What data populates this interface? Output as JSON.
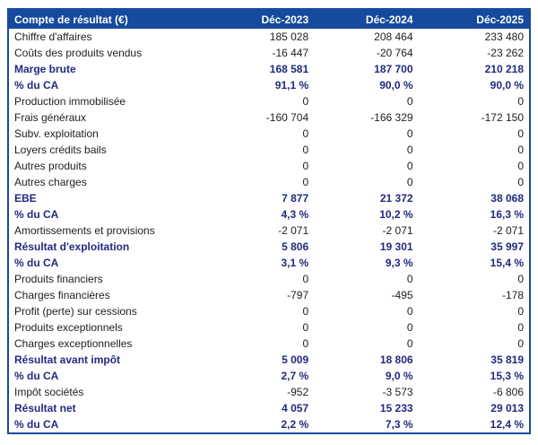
{
  "page": {
    "background_color": "#ffffff"
  },
  "table": {
    "title": "Compte de résultat (€)",
    "columns": [
      "Déc-2023",
      "Déc-2024",
      "Déc-2025"
    ],
    "colors": {
      "header_background": "#164a9c",
      "header_text": "#ffffff",
      "outer_border": "#1b4a9e",
      "bold_row_text": "#1f2b7e",
      "regular_row_text": "#1d1d1d"
    },
    "rows": [
      {
        "label": "Chiffre d'affaires",
        "bold": false,
        "values": [
          "185 028",
          "208 464",
          "233 480"
        ]
      },
      {
        "label": "Coûts des produits vendus",
        "bold": false,
        "values": [
          "-16 447",
          "-20 764",
          "-23 262"
        ]
      },
      {
        "label": "Marge brute",
        "bold": true,
        "values": [
          "168 581",
          "187 700",
          "210 218"
        ]
      },
      {
        "label": "% du CA",
        "bold": true,
        "values": [
          "91,1 %",
          "90,0 %",
          "90,0 %"
        ]
      },
      {
        "label": "Production immobilisée",
        "bold": false,
        "values": [
          "0",
          "0",
          "0"
        ]
      },
      {
        "label": "Frais généraux",
        "bold": false,
        "values": [
          "-160 704",
          "-166 329",
          "-172 150"
        ]
      },
      {
        "label": "Subv. exploitation",
        "bold": false,
        "values": [
          "0",
          "0",
          "0"
        ]
      },
      {
        "label": "Loyers crédits bails",
        "bold": false,
        "values": [
          "0",
          "0",
          "0"
        ]
      },
      {
        "label": "Autres produits",
        "bold": false,
        "values": [
          "0",
          "0",
          "0"
        ]
      },
      {
        "label": "Autres charges",
        "bold": false,
        "values": [
          "0",
          "0",
          "0"
        ]
      },
      {
        "label": "EBE",
        "bold": true,
        "values": [
          "7 877",
          "21 372",
          "38 068"
        ]
      },
      {
        "label": "% du CA",
        "bold": true,
        "values": [
          "4,3 %",
          "10,2 %",
          "16,3 %"
        ]
      },
      {
        "label": "Amortissements et provisions",
        "bold": false,
        "values": [
          "-2 071",
          "-2 071",
          "-2 071"
        ]
      },
      {
        "label": "Résultat d'exploitation",
        "bold": true,
        "values": [
          "5 806",
          "19 301",
          "35 997"
        ]
      },
      {
        "label": "% du CA",
        "bold": true,
        "values": [
          "3,1 %",
          "9,3 %",
          "15,4 %"
        ]
      },
      {
        "label": "Produits financiers",
        "bold": false,
        "values": [
          "0",
          "0",
          "0"
        ]
      },
      {
        "label": "Charges financières",
        "bold": false,
        "values": [
          "-797",
          "-495",
          "-178"
        ]
      },
      {
        "label": "Profit (perte) sur cessions",
        "bold": false,
        "values": [
          "0",
          "0",
          "0"
        ]
      },
      {
        "label": "Produits exceptionnels",
        "bold": false,
        "values": [
          "0",
          "0",
          "0"
        ]
      },
      {
        "label": "Charges exceptionnelles",
        "bold": false,
        "values": [
          "0",
          "0",
          "0"
        ]
      },
      {
        "label": "Résultat avant impôt",
        "bold": true,
        "values": [
          "5 009",
          "18 806",
          "35 819"
        ]
      },
      {
        "label": "% du CA",
        "bold": true,
        "values": [
          "2,7 %",
          "9,0 %",
          "15,3 %"
        ]
      },
      {
        "label": "Impôt sociétés",
        "bold": false,
        "values": [
          "-952",
          "-3 573",
          "-6 806"
        ]
      },
      {
        "label": "Résultat net",
        "bold": true,
        "values": [
          "4 057",
          "15 233",
          "29 013"
        ]
      },
      {
        "label": "% du CA",
        "bold": true,
        "values": [
          "2,2 %",
          "7,3 %",
          "12,4 %"
        ]
      }
    ]
  }
}
